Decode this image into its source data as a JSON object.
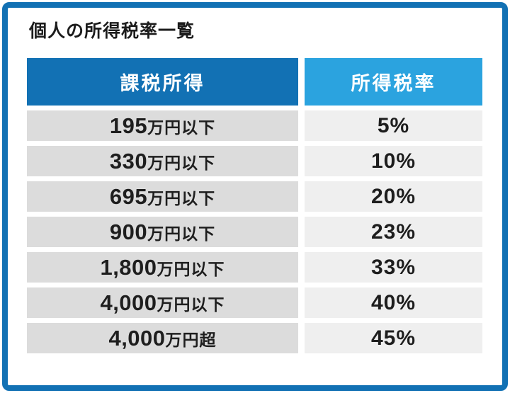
{
  "title": "個人の所得税率一覧",
  "table": {
    "headers": {
      "income": "課税所得",
      "rate": "所得税率"
    },
    "rows": [
      {
        "income_number": "195",
        "income_suffix": "万円以下",
        "rate": "5%"
      },
      {
        "income_number": "330",
        "income_suffix": "万円以下",
        "rate": "10%"
      },
      {
        "income_number": "695",
        "income_suffix": "万円以下",
        "rate": "20%"
      },
      {
        "income_number": "900",
        "income_suffix": "万円以下",
        "rate": "23%"
      },
      {
        "income_number": "1,800",
        "income_suffix": "万円以下",
        "rate": "33%"
      },
      {
        "income_number": "4,000",
        "income_suffix": "万円以下",
        "rate": "40%"
      },
      {
        "income_number": "4,000",
        "income_suffix": "万円超",
        "rate": "45%"
      }
    ]
  },
  "colors": {
    "border_blue": "#1271B4",
    "header_income_bg": "#1271B4",
    "header_rate_bg": "#2BA3DF",
    "cell_income_bg": "#DCDCDC",
    "cell_rate_bg": "#EFEFEF",
    "text": "#1e1e1e"
  },
  "chart_data": {
    "type": "table",
    "title": "個人の所得税率一覧",
    "columns": [
      "課税所得",
      "所得税率"
    ],
    "rows": [
      [
        "195万円以下",
        "5%"
      ],
      [
        "330万円以下",
        "10%"
      ],
      [
        "695万円以下",
        "20%"
      ],
      [
        "900万円以下",
        "23%"
      ],
      [
        "1,800万円以下",
        "33%"
      ],
      [
        "4,000万円以下",
        "40%"
      ],
      [
        "4,000万円超",
        "45%"
      ]
    ]
  }
}
